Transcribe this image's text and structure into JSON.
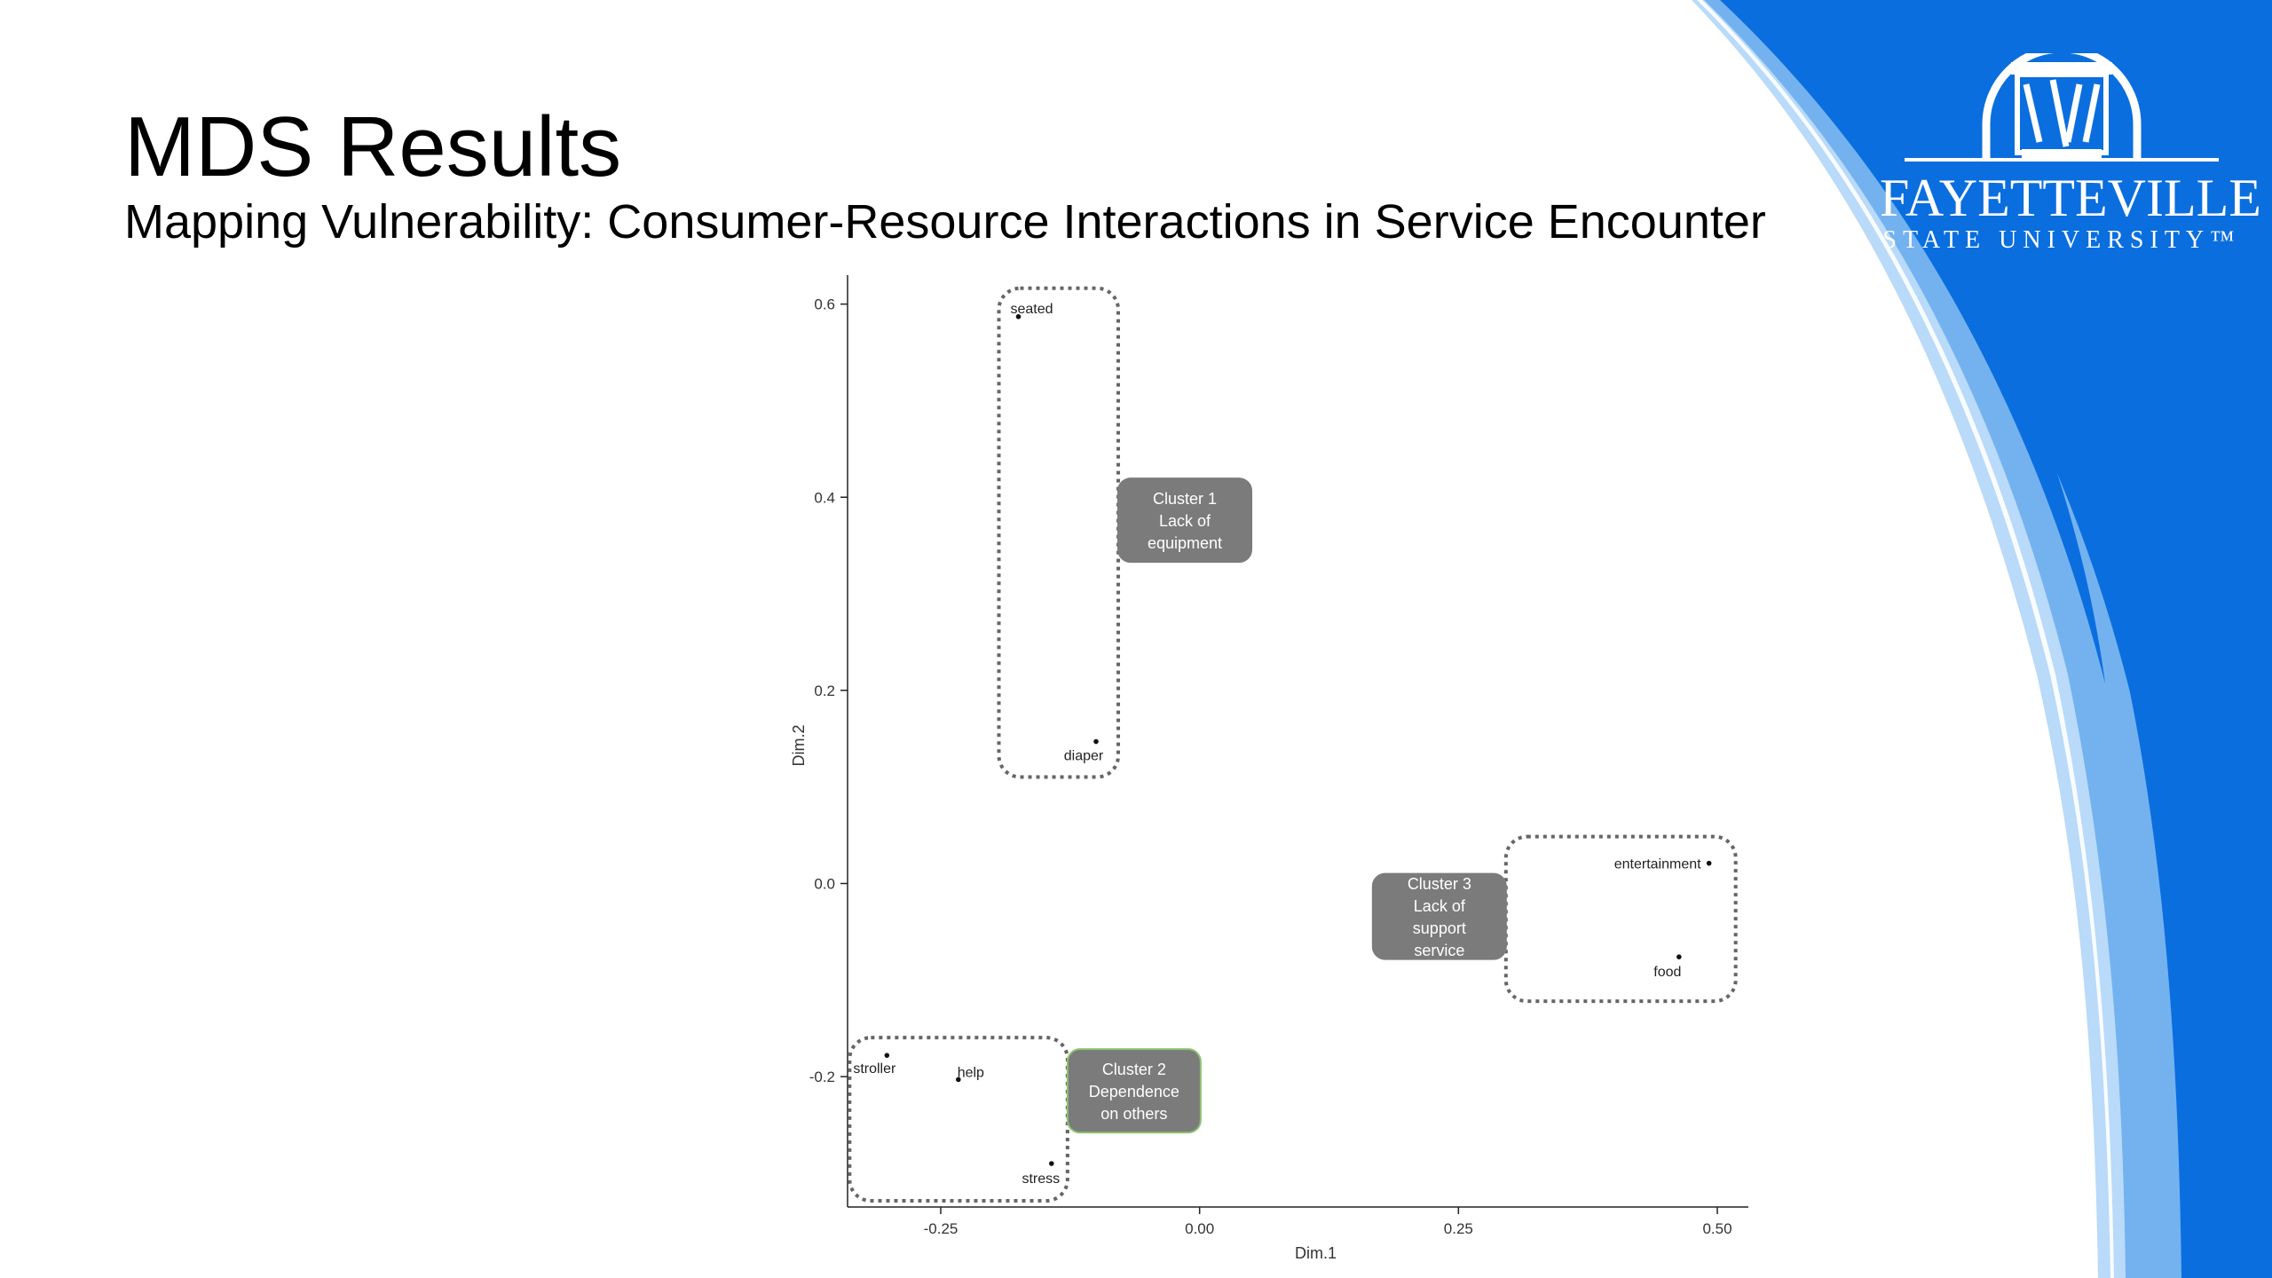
{
  "slide": {
    "title": "MDS Results",
    "subtitle": "Mapping Vulnerability: Consumer-Resource Interactions in Service Encounter"
  },
  "logo": {
    "name": "FAYETTEVILLE",
    "subname": "STATE UNIVERSITY™",
    "icon": "university-seal-icon"
  },
  "colors": {
    "brand_blue": "#0A6EDF",
    "light_blue_1": "#74B2EF",
    "light_blue_2": "#B9DAF8",
    "cluster_box": "#7B7B7B",
    "cluster2_border": "#8DC26F"
  },
  "chart_data": {
    "type": "scatter",
    "xlabel": "Dim.1",
    "ylabel": "Dim.2",
    "xlim": [
      -0.34,
      0.53
    ],
    "ylim": [
      -0.335,
      0.63
    ],
    "xticks": [
      -0.25,
      0.0,
      0.25,
      0.5
    ],
    "xtick_labels": [
      "-0.25",
      "0.00",
      "0.25",
      "0.50"
    ],
    "yticks": [
      -0.2,
      0.0,
      0.2,
      0.4,
      0.6
    ],
    "ytick_labels": [
      "-0.2",
      "0.0",
      "0.2",
      "0.4",
      "0.6"
    ],
    "grid": false,
    "points": [
      {
        "label": "seated",
        "x": -0.175,
        "y": 0.587
      },
      {
        "label": "diaper",
        "x": -0.1,
        "y": 0.147
      },
      {
        "label": "entertainment",
        "x": 0.492,
        "y": 0.021
      },
      {
        "label": "food",
        "x": 0.463,
        "y": -0.076
      },
      {
        "label": "stroller",
        "x": -0.302,
        "y": -0.178
      },
      {
        "label": "help",
        "x": -0.233,
        "y": -0.203
      },
      {
        "label": "stress",
        "x": -0.143,
        "y": -0.29
      }
    ],
    "clusters": [
      {
        "name": "Cluster 1",
        "lines": [
          "Cluster 1",
          "Lack of",
          "equipment"
        ],
        "members": [
          "seated",
          "diaper"
        ]
      },
      {
        "name": "Cluster 2",
        "lines": [
          "Cluster 2",
          "Dependence",
          "on others"
        ],
        "members": [
          "stroller",
          "help",
          "stress"
        ]
      },
      {
        "name": "Cluster 3",
        "lines": [
          "Cluster 3",
          "Lack of",
          "support",
          "service"
        ],
        "members": [
          "entertainment",
          "food"
        ]
      }
    ]
  }
}
